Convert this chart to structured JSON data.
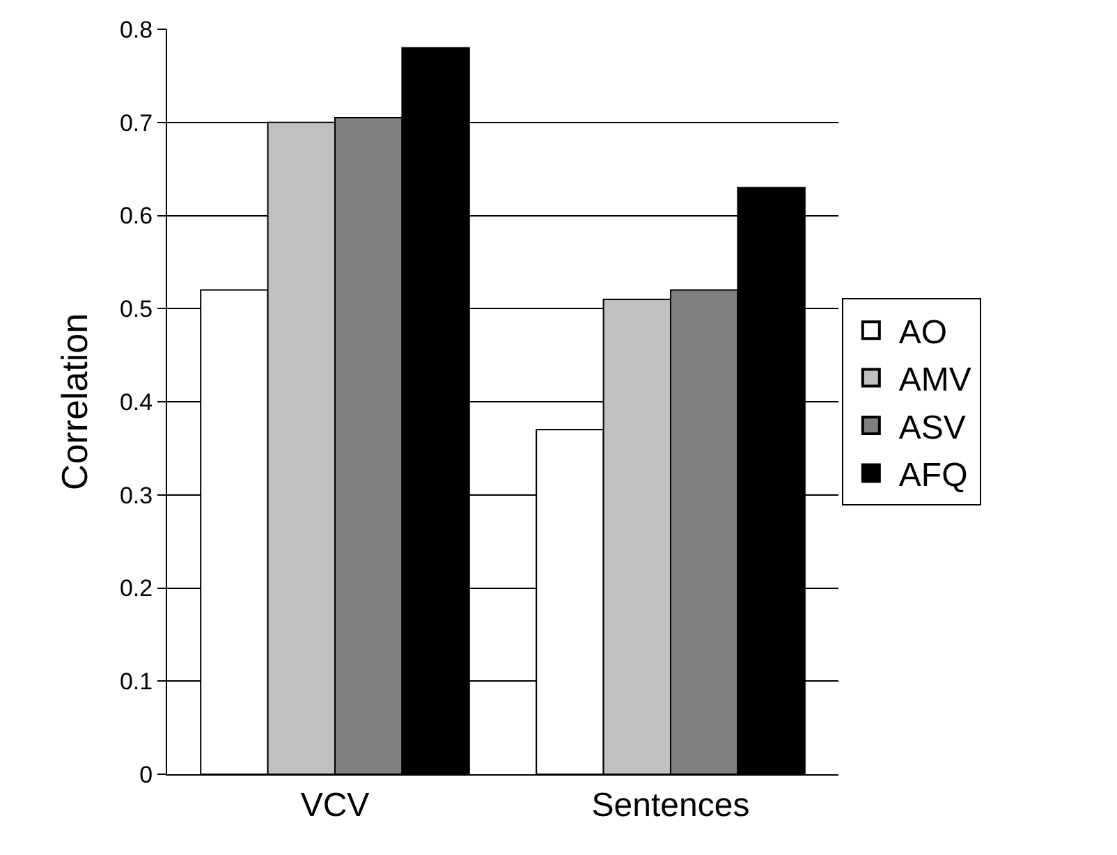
{
  "chart_data": {
    "type": "bar",
    "ylabel": "Correlation",
    "categories": [
      "VCV",
      "Sentences"
    ],
    "series": [
      {
        "name": "AO",
        "color": "#ffffff",
        "values": [
          0.52,
          0.37
        ]
      },
      {
        "name": "AMV",
        "color": "#c0c0c0",
        "values": [
          0.7,
          0.51
        ]
      },
      {
        "name": "ASV",
        "color": "#808080",
        "values": [
          0.705,
          0.52
        ]
      },
      {
        "name": "AFQ",
        "color": "#000000",
        "values": [
          0.78,
          0.63
        ]
      }
    ],
    "ylim": [
      0,
      0.8
    ],
    "yticks": [
      0,
      0.1,
      0.2,
      0.3,
      0.4,
      0.5,
      0.6,
      0.7,
      0.8
    ],
    "grid": "y",
    "legend": "right"
  }
}
